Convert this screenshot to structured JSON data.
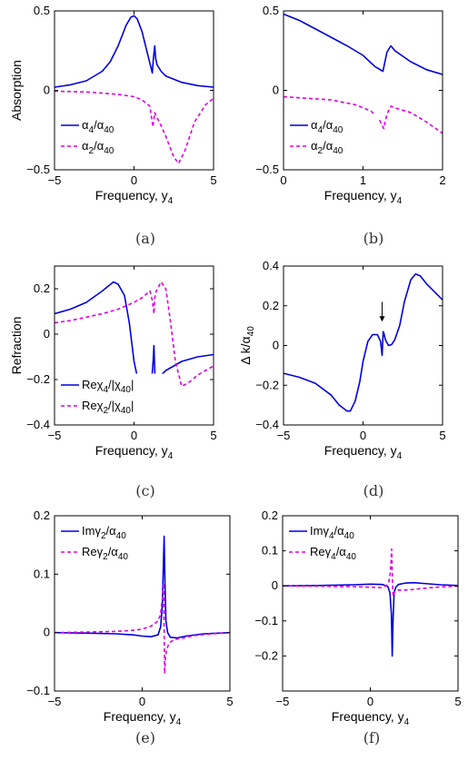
{
  "colors": {
    "series1": "#0000dd",
    "series2": "#dd00dd",
    "axis": "#000000",
    "background": "#ffffff"
  },
  "chart_data": [
    {
      "id": "a",
      "type": "line",
      "caption": "(a)",
      "xlabel": "Frequency, y",
      "xlabel_sub": "4",
      "ylabel": "Absorption",
      "ylabel_sub": "",
      "xlim": [
        -5,
        5
      ],
      "ylim": [
        -0.5,
        0.5
      ],
      "xticks": [
        "−5",
        "0",
        "5"
      ],
      "xtick_values": [
        -5,
        0,
        5
      ],
      "yticks": [
        "−0.5",
        "0",
        "0.5"
      ],
      "ytick_values": [
        -0.5,
        0,
        0.5
      ],
      "legend_position": "bottom-left",
      "series": [
        {
          "name": "α4/α40",
          "style": "solid",
          "legend": [
            "α",
            "4",
            "/α",
            "40"
          ],
          "x": [
            -5,
            -4,
            -3,
            -2,
            -1.5,
            -1,
            -0.5,
            -0.2,
            0,
            0.2,
            0.5,
            0.8,
            1.0,
            1.15,
            1.22,
            1.3,
            1.36,
            1.45,
            1.7,
            2,
            3,
            4,
            5
          ],
          "y": [
            0.02,
            0.035,
            0.06,
            0.12,
            0.18,
            0.28,
            0.41,
            0.46,
            0.47,
            0.45,
            0.37,
            0.25,
            0.17,
            0.11,
            0.2,
            0.28,
            0.2,
            0.16,
            0.12,
            0.09,
            0.05,
            0.03,
            0.02
          ]
        },
        {
          "name": "α2/α40",
          "style": "dashed",
          "legend": [
            "α",
            "2",
            "/α",
            "40"
          ],
          "x": [
            -5,
            -3,
            -1,
            0,
            0.5,
            1.0,
            1.18,
            1.3,
            1.42,
            1.6,
            2,
            2.5,
            2.8,
            3.2,
            3.8,
            4.5,
            5
          ],
          "y": [
            -0.005,
            -0.01,
            -0.025,
            -0.04,
            -0.06,
            -0.1,
            -0.23,
            -0.14,
            -0.17,
            -0.2,
            -0.29,
            -0.42,
            -0.46,
            -0.38,
            -0.2,
            -0.09,
            -0.05
          ]
        }
      ]
    },
    {
      "id": "b",
      "type": "line",
      "caption": "(b)",
      "xlabel": "Frequency, y",
      "xlabel_sub": "4",
      "ylabel": "",
      "ylabel_sub": "",
      "xlim": [
        0,
        2
      ],
      "ylim": [
        -0.5,
        0.5
      ],
      "xticks": [
        "0",
        "1",
        "2"
      ],
      "xtick_values": [
        0,
        1,
        2
      ],
      "yticks": [
        "−0.5",
        "0",
        "0.5"
      ],
      "ytick_values": [
        -0.5,
        0,
        0.5
      ],
      "legend_position": "bottom-left",
      "series": [
        {
          "name": "α4/α40",
          "style": "solid",
          "legend": [
            "α",
            "4",
            "/α",
            "40"
          ],
          "x": [
            0,
            0.2,
            0.5,
            0.8,
            1.0,
            1.15,
            1.25,
            1.3,
            1.35,
            1.4,
            1.6,
            1.8,
            2.0
          ],
          "y": [
            0.48,
            0.44,
            0.36,
            0.28,
            0.22,
            0.15,
            0.12,
            0.24,
            0.28,
            0.25,
            0.18,
            0.13,
            0.1
          ]
        },
        {
          "name": "α2/α40",
          "style": "dashed",
          "legend": [
            "α",
            "2",
            "/α",
            "40"
          ],
          "x": [
            0,
            0.3,
            0.6,
            0.9,
            1.1,
            1.2,
            1.26,
            1.3,
            1.35,
            1.4,
            1.6,
            1.8,
            2.0
          ],
          "y": [
            -0.04,
            -0.05,
            -0.06,
            -0.09,
            -0.13,
            -0.18,
            -0.24,
            -0.15,
            -0.1,
            -0.11,
            -0.14,
            -0.2,
            -0.27
          ]
        }
      ]
    },
    {
      "id": "c",
      "type": "line",
      "caption": "(c)",
      "xlabel": "Frequency, y",
      "xlabel_sub": "4",
      "ylabel": "Refraction",
      "ylabel_sub": "",
      "xlim": [
        -5,
        5
      ],
      "ylim": [
        -0.4,
        0.3
      ],
      "xticks": [
        "−5",
        "0",
        "5"
      ],
      "xtick_values": [
        -5,
        0,
        5
      ],
      "yticks": [
        "−0.4",
        "−0.2",
        "0",
        "0.2"
      ],
      "ytick_values": [
        -0.4,
        -0.2,
        0,
        0.2
      ],
      "legend_position": "bottom-left",
      "series": [
        {
          "name": "Reχ4/|χ40|",
          "style": "solid",
          "legend": [
            "Reχ",
            "4",
            "/|χ",
            "40",
            "|"
          ],
          "x": [
            -5,
            -4,
            -3,
            -2,
            -1.3,
            -1,
            -0.6,
            -0.3,
            0,
            0.3,
            0.6,
            0.9,
            1.1,
            1.2,
            1.25,
            1.3,
            1.35,
            1.45,
            1.7,
            2,
            3,
            4,
            5
          ],
          "y": [
            0.09,
            0.11,
            0.14,
            0.19,
            0.23,
            0.22,
            0.17,
            0.05,
            -0.12,
            -0.22,
            -0.25,
            -0.24,
            -0.21,
            -0.12,
            -0.05,
            -0.16,
            -0.22,
            -0.21,
            -0.18,
            -0.16,
            -0.12,
            -0.1,
            -0.09
          ]
        },
        {
          "name": "Reχ2/|χ40|",
          "style": "dashed",
          "legend": [
            "Reχ",
            "2",
            "/|χ",
            "40",
            "|"
          ],
          "x": [
            -5,
            -4,
            -3,
            -2,
            -1,
            0,
            0.5,
            1.0,
            1.15,
            1.25,
            1.3,
            1.4,
            1.7,
            2.0,
            2.3,
            2.6,
            3.0,
            3.5,
            4,
            4.5,
            5
          ],
          "y": [
            0.05,
            0.06,
            0.075,
            0.09,
            0.11,
            0.14,
            0.16,
            0.19,
            0.15,
            0.09,
            0.16,
            0.19,
            0.23,
            0.2,
            0.05,
            -0.12,
            -0.23,
            -0.21,
            -0.18,
            -0.16,
            -0.14
          ]
        }
      ]
    },
    {
      "id": "d",
      "type": "line",
      "caption": "(d)",
      "xlabel": "Frequency, y",
      "xlabel_sub": "4",
      "ylabel": "Δ k/α",
      "ylabel_sub": "40",
      "xlim": [
        -5,
        5
      ],
      "ylim": [
        -0.4,
        0.4
      ],
      "xticks": [
        "−5",
        "0",
        "5"
      ],
      "xtick_values": [
        -5,
        0,
        5
      ],
      "yticks": [
        "−0.4",
        "−0.2",
        "0",
        "0.2",
        "0.4"
      ],
      "ytick_values": [
        -0.4,
        -0.2,
        0,
        0.2,
        0.4
      ],
      "legend_position": "none",
      "annotation": {
        "type": "arrow",
        "x": 1.2,
        "y_from": 0.22,
        "y_to": 0.12
      },
      "series": [
        {
          "name": "Δk/α40",
          "style": "solid",
          "legend": [],
          "x": [
            -5,
            -4,
            -3,
            -2,
            -1.5,
            -1,
            -0.8,
            -0.5,
            -0.2,
            0,
            0.3,
            0.6,
            0.9,
            1.1,
            1.2,
            1.27,
            1.32,
            1.4,
            1.6,
            1.8,
            2.0,
            2.3,
            2.6,
            3.0,
            3.3,
            3.6,
            4,
            5
          ],
          "y": [
            -0.14,
            -0.16,
            -0.19,
            -0.25,
            -0.3,
            -0.33,
            -0.33,
            -0.28,
            -0.18,
            -0.08,
            0.02,
            0.055,
            0.055,
            0.02,
            -0.05,
            0.07,
            0.06,
            0.03,
            0.0,
            0.005,
            0.03,
            0.1,
            0.22,
            0.33,
            0.36,
            0.35,
            0.31,
            0.23
          ]
        }
      ]
    },
    {
      "id": "e",
      "type": "line",
      "caption": "(e)",
      "xlabel": "Frequency, y",
      "xlabel_sub": "4",
      "ylabel": "",
      "ylabel_sub": "",
      "xlim": [
        -5,
        5
      ],
      "ylim": [
        -0.1,
        0.2
      ],
      "xticks": [
        "−5",
        "0",
        "5"
      ],
      "xtick_values": [
        -5,
        0,
        5
      ],
      "yticks": [
        "−0.1",
        "0",
        "0.1",
        "0.2"
      ],
      "ytick_values": [
        -0.1,
        0,
        0.1,
        0.2
      ],
      "legend_position": "top-left",
      "series": [
        {
          "name": "Imγ2/α40",
          "style": "solid",
          "legend": [
            "Imγ",
            "2",
            "/α",
            "40"
          ],
          "x": [
            -5,
            -3,
            -1.5,
            -0.5,
            0,
            0.5,
            0.9,
            1.05,
            1.15,
            1.2,
            1.25,
            1.3,
            1.35,
            1.45,
            1.6,
            2,
            2.5,
            3.5,
            5
          ],
          "y": [
            0,
            -0.001,
            -0.002,
            -0.004,
            -0.006,
            -0.007,
            -0.004,
            0.01,
            0.05,
            0.11,
            0.165,
            0.08,
            0.02,
            0.0,
            -0.008,
            -0.009,
            -0.006,
            -0.002,
            0
          ]
        },
        {
          "name": "Reγ2/α40",
          "style": "dashed",
          "legend": [
            "Reγ",
            "2",
            "/α",
            "40"
          ],
          "x": [
            -5,
            -3,
            -1.5,
            -0.5,
            0,
            0.5,
            0.9,
            1.05,
            1.15,
            1.22,
            1.28,
            1.33,
            1.4,
            1.55,
            1.8,
            2.2,
            3,
            4,
            5
          ],
          "y": [
            0,
            0.001,
            0.002,
            0.004,
            0.006,
            0.011,
            0.02,
            0.032,
            0.06,
            0.085,
            -0.07,
            -0.04,
            -0.028,
            -0.018,
            -0.012,
            -0.01,
            -0.005,
            -0.002,
            0
          ]
        }
      ]
    },
    {
      "id": "f",
      "type": "line",
      "caption": "(f)",
      "xlabel": "Frequency, y",
      "xlabel_sub": "4",
      "ylabel": "",
      "ylabel_sub": "",
      "xlim": [
        -5,
        5
      ],
      "ylim": [
        -0.3,
        0.2
      ],
      "xticks": [
        "−5",
        "0",
        "5"
      ],
      "xtick_values": [
        -5,
        0,
        5
      ],
      "yticks": [
        "−0.2",
        "−0.1",
        "0",
        "0.1",
        "0.2"
      ],
      "ytick_values": [
        -0.2,
        -0.1,
        0,
        0.1,
        0.2
      ],
      "legend_position": "top-left",
      "series": [
        {
          "name": "Imγ4/α40",
          "style": "solid",
          "legend": [
            "Imγ",
            "4",
            "/α",
            "40"
          ],
          "x": [
            -5,
            -3,
            -1,
            0,
            0.7,
            1.0,
            1.12,
            1.2,
            1.25,
            1.3,
            1.36,
            1.45,
            1.6,
            2,
            2.5,
            3,
            4,
            5
          ],
          "y": [
            0,
            0.001,
            0.003,
            0.005,
            0.004,
            -0.002,
            -0.02,
            -0.08,
            -0.2,
            -0.09,
            -0.02,
            -0.004,
            0.004,
            0.008,
            0.009,
            0.007,
            0.003,
            0.001
          ]
        },
        {
          "name": "Reγ4/α40",
          "style": "dashed",
          "legend": [
            "Reγ",
            "4",
            "/α",
            "40"
          ],
          "x": [
            -5,
            -3,
            -1,
            0,
            0.6,
            0.9,
            1.05,
            1.15,
            1.22,
            1.26,
            1.3,
            1.36,
            1.45,
            1.6,
            2,
            2.5,
            3,
            4,
            5
          ],
          "y": [
            0,
            -0.001,
            -0.002,
            -0.004,
            -0.005,
            0.0,
            0.01,
            0.04,
            0.105,
            0.02,
            -0.03,
            -0.02,
            -0.015,
            -0.012,
            -0.012,
            -0.01,
            -0.007,
            -0.003,
            -0.001
          ]
        }
      ]
    }
  ]
}
